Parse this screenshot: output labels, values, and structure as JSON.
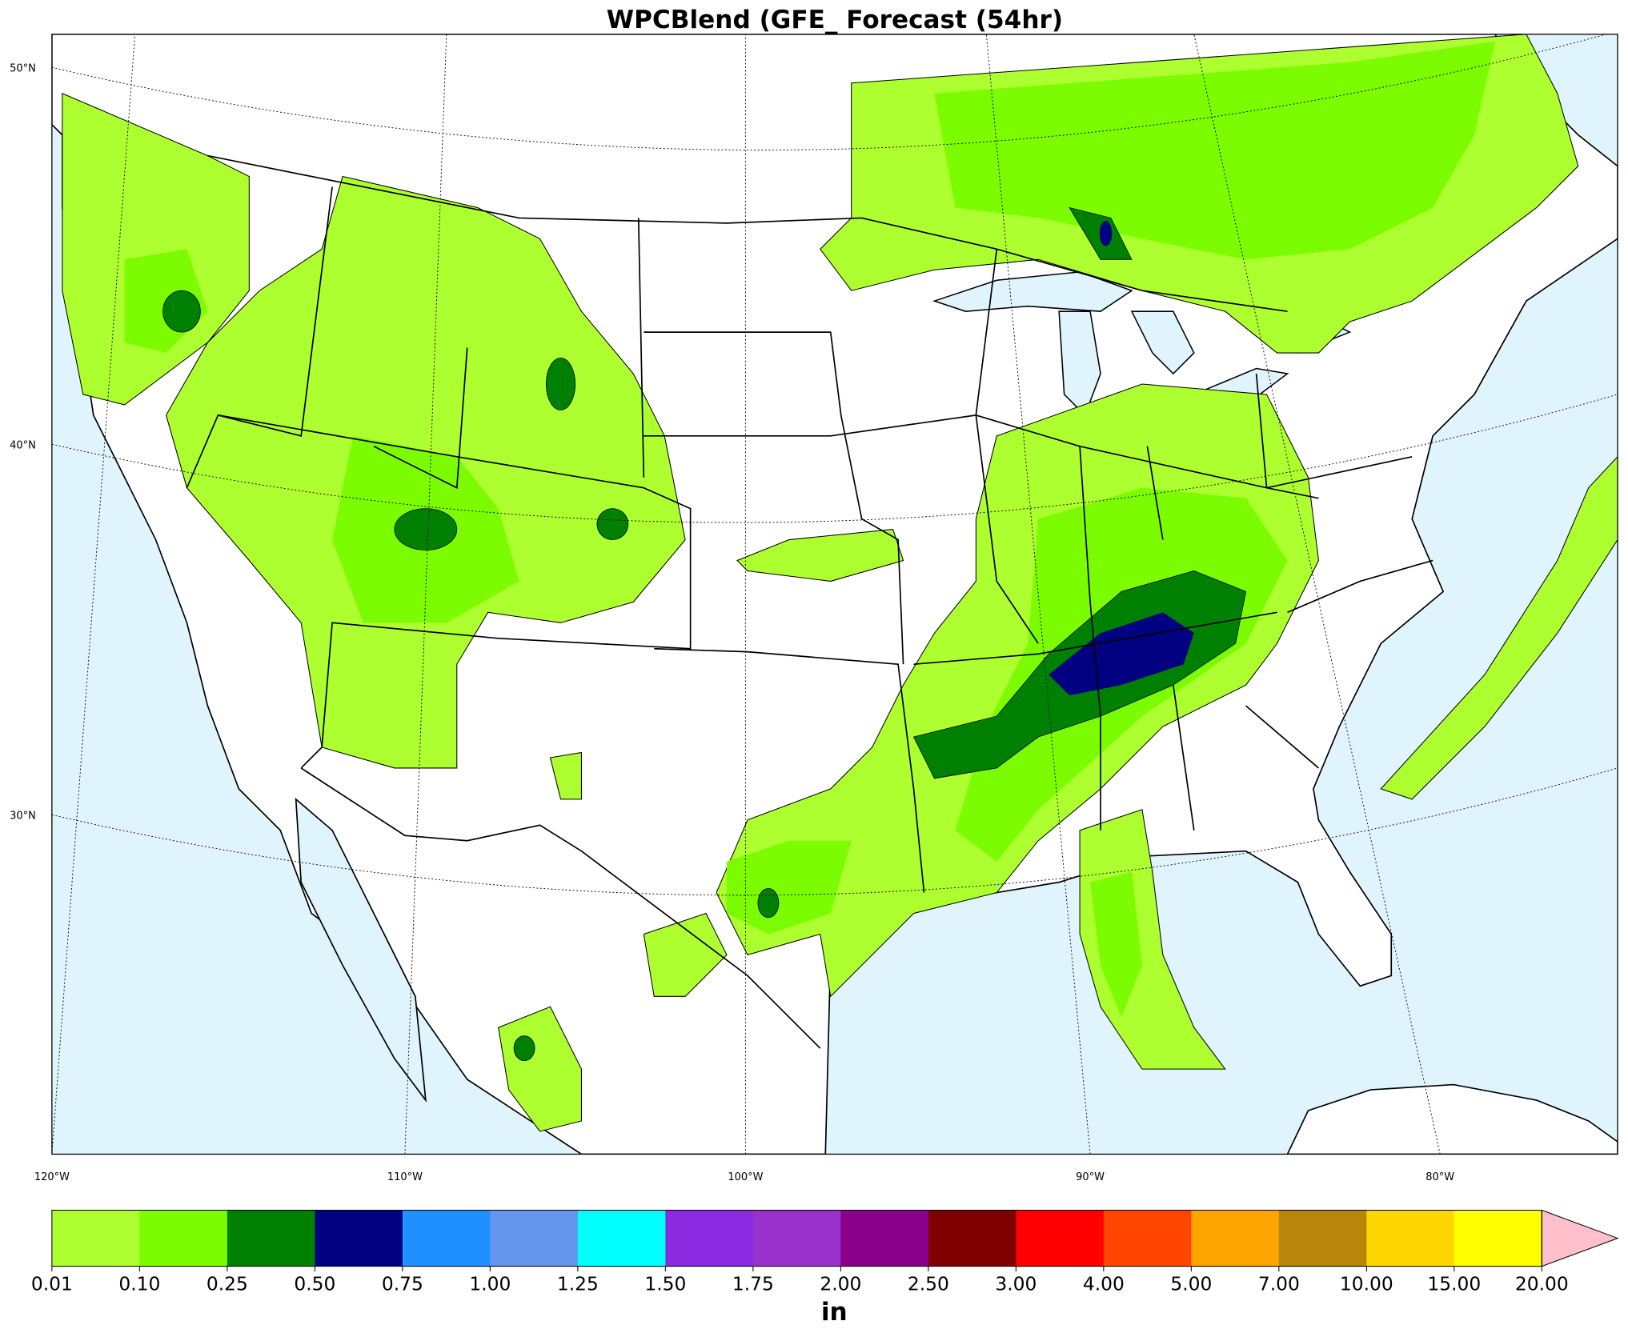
{
  "title": "WPCBlend (GFE_ Forecast (54hr)",
  "map": {
    "lat_labels": [
      "50°N",
      "40°N",
      "30°N"
    ],
    "lon_labels": [
      "120°W",
      "110°W",
      "100°W",
      "90°W",
      "80°W"
    ]
  },
  "colorbar": {
    "ticks": [
      0.01,
      {
        "value": 0.1,
        "label": "0.10"
      },
      0.25,
      {
        "value": 0.5,
        "label": "0.50"
      },
      0.75,
      {
        "value": 1,
        "label": "1.00"
      },
      1.25,
      {
        "value": 1.5,
        "label": "1.50"
      },
      1.75,
      {
        "value": 2,
        "label": "2.00"
      },
      {
        "value": 2.5,
        "label": "2.50"
      },
      {
        "value": 3,
        "label": "3.00"
      },
      {
        "value": 4,
        "label": "4.00"
      },
      {
        "value": 5,
        "label": "5.00"
      },
      {
        "value": 7,
        "label": "7.00"
      },
      {
        "value": 10,
        "label": "10.00"
      },
      {
        "value": 15,
        "label": "15.00"
      },
      {
        "value": 20,
        "label": "20.00"
      }
    ],
    "colors": [
      "#adff2f",
      "#7cfc00",
      "#008000",
      "#000080",
      "#1e90ff",
      "#6495ed",
      "#00ffff",
      "#8a2be2",
      "#9932cc",
      "#8b008b",
      "#800000",
      "#ff0000",
      "#ff4500",
      "#ffa500",
      "#b8860b",
      "#ffd700",
      "#ffff00"
    ],
    "extend_color": "#ffc0cb",
    "unit": "in"
  }
}
